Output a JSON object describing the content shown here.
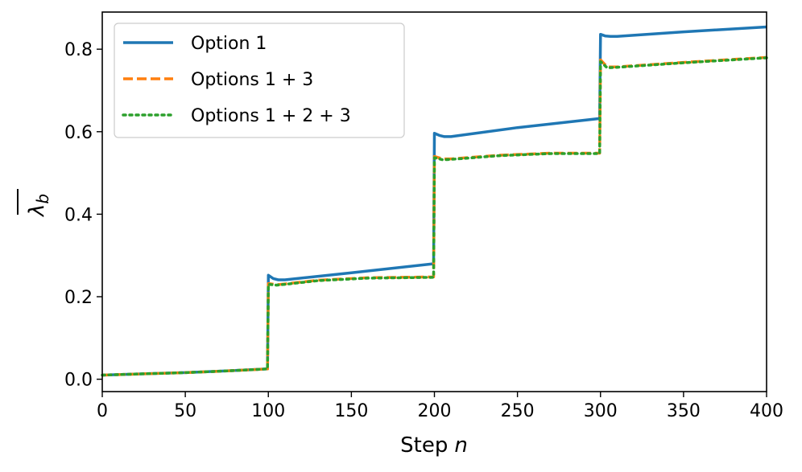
{
  "chart_data": {
    "type": "line",
    "title": "",
    "xlabel": "Step",
    "xlabel_var": "n",
    "ylabel_symbol": "λ",
    "ylabel_subscript": "b",
    "xlim": [
      0,
      400
    ],
    "ylim": [
      -0.03,
      0.89
    ],
    "xticks": [
      0,
      50,
      100,
      150,
      200,
      250,
      300,
      350,
      400
    ],
    "yticks": [
      0.0,
      0.2,
      0.4,
      0.6,
      0.8
    ],
    "ytick_labels": [
      "0.0",
      "0.2",
      "0.4",
      "0.6",
      "0.8"
    ],
    "grid": false,
    "legend_position": "top-left",
    "series": [
      {
        "name": "Option 1",
        "color": "#1f77b4",
        "style": "solid",
        "points": [
          [
            0,
            0.01
          ],
          [
            25,
            0.013
          ],
          [
            50,
            0.016
          ],
          [
            75,
            0.02
          ],
          [
            99.5,
            0.025
          ],
          [
            100,
            0.252
          ],
          [
            103,
            0.244
          ],
          [
            106,
            0.241
          ],
          [
            110,
            0.241
          ],
          [
            150,
            0.258
          ],
          [
            199.5,
            0.28
          ],
          [
            200,
            0.596
          ],
          [
            203,
            0.591
          ],
          [
            206,
            0.588
          ],
          [
            210,
            0.588
          ],
          [
            250,
            0.61
          ],
          [
            299.5,
            0.632
          ],
          [
            300,
            0.836
          ],
          [
            303,
            0.832
          ],
          [
            306,
            0.831
          ],
          [
            310,
            0.831
          ],
          [
            350,
            0.842
          ],
          [
            400,
            0.854
          ]
        ]
      },
      {
        "name": "Options 1 + 3",
        "color": "#ff7f0e",
        "style": "dashed",
        "points": [
          [
            0,
            0.01
          ],
          [
            25,
            0.013
          ],
          [
            50,
            0.016
          ],
          [
            75,
            0.02
          ],
          [
            99.5,
            0.025
          ],
          [
            100,
            0.232
          ],
          [
            105,
            0.229
          ],
          [
            110,
            0.231
          ],
          [
            130,
            0.24
          ],
          [
            160,
            0.246
          ],
          [
            199.5,
            0.248
          ],
          [
            200,
            0.54
          ],
          [
            205,
            0.534
          ],
          [
            210,
            0.534
          ],
          [
            240,
            0.543
          ],
          [
            270,
            0.548
          ],
          [
            299.5,
            0.548
          ],
          [
            300,
            0.774
          ],
          [
            304,
            0.757
          ],
          [
            310,
            0.757
          ],
          [
            350,
            0.768
          ],
          [
            400,
            0.78
          ]
        ]
      },
      {
        "name": "Options 1 + 2 + 3",
        "color": "#2ca02c",
        "style": "dotted",
        "points": [
          [
            0,
            0.01
          ],
          [
            25,
            0.013
          ],
          [
            50,
            0.016
          ],
          [
            75,
            0.02
          ],
          [
            99.5,
            0.025
          ],
          [
            100,
            0.23
          ],
          [
            105,
            0.228
          ],
          [
            110,
            0.23
          ],
          [
            130,
            0.239
          ],
          [
            160,
            0.245
          ],
          [
            199.5,
            0.247
          ],
          [
            200,
            0.537
          ],
          [
            205,
            0.532
          ],
          [
            210,
            0.533
          ],
          [
            240,
            0.542
          ],
          [
            270,
            0.547
          ],
          [
            299.5,
            0.547
          ],
          [
            300,
            0.77
          ],
          [
            304,
            0.755
          ],
          [
            310,
            0.756
          ],
          [
            350,
            0.767
          ],
          [
            400,
            0.779
          ]
        ]
      }
    ]
  }
}
